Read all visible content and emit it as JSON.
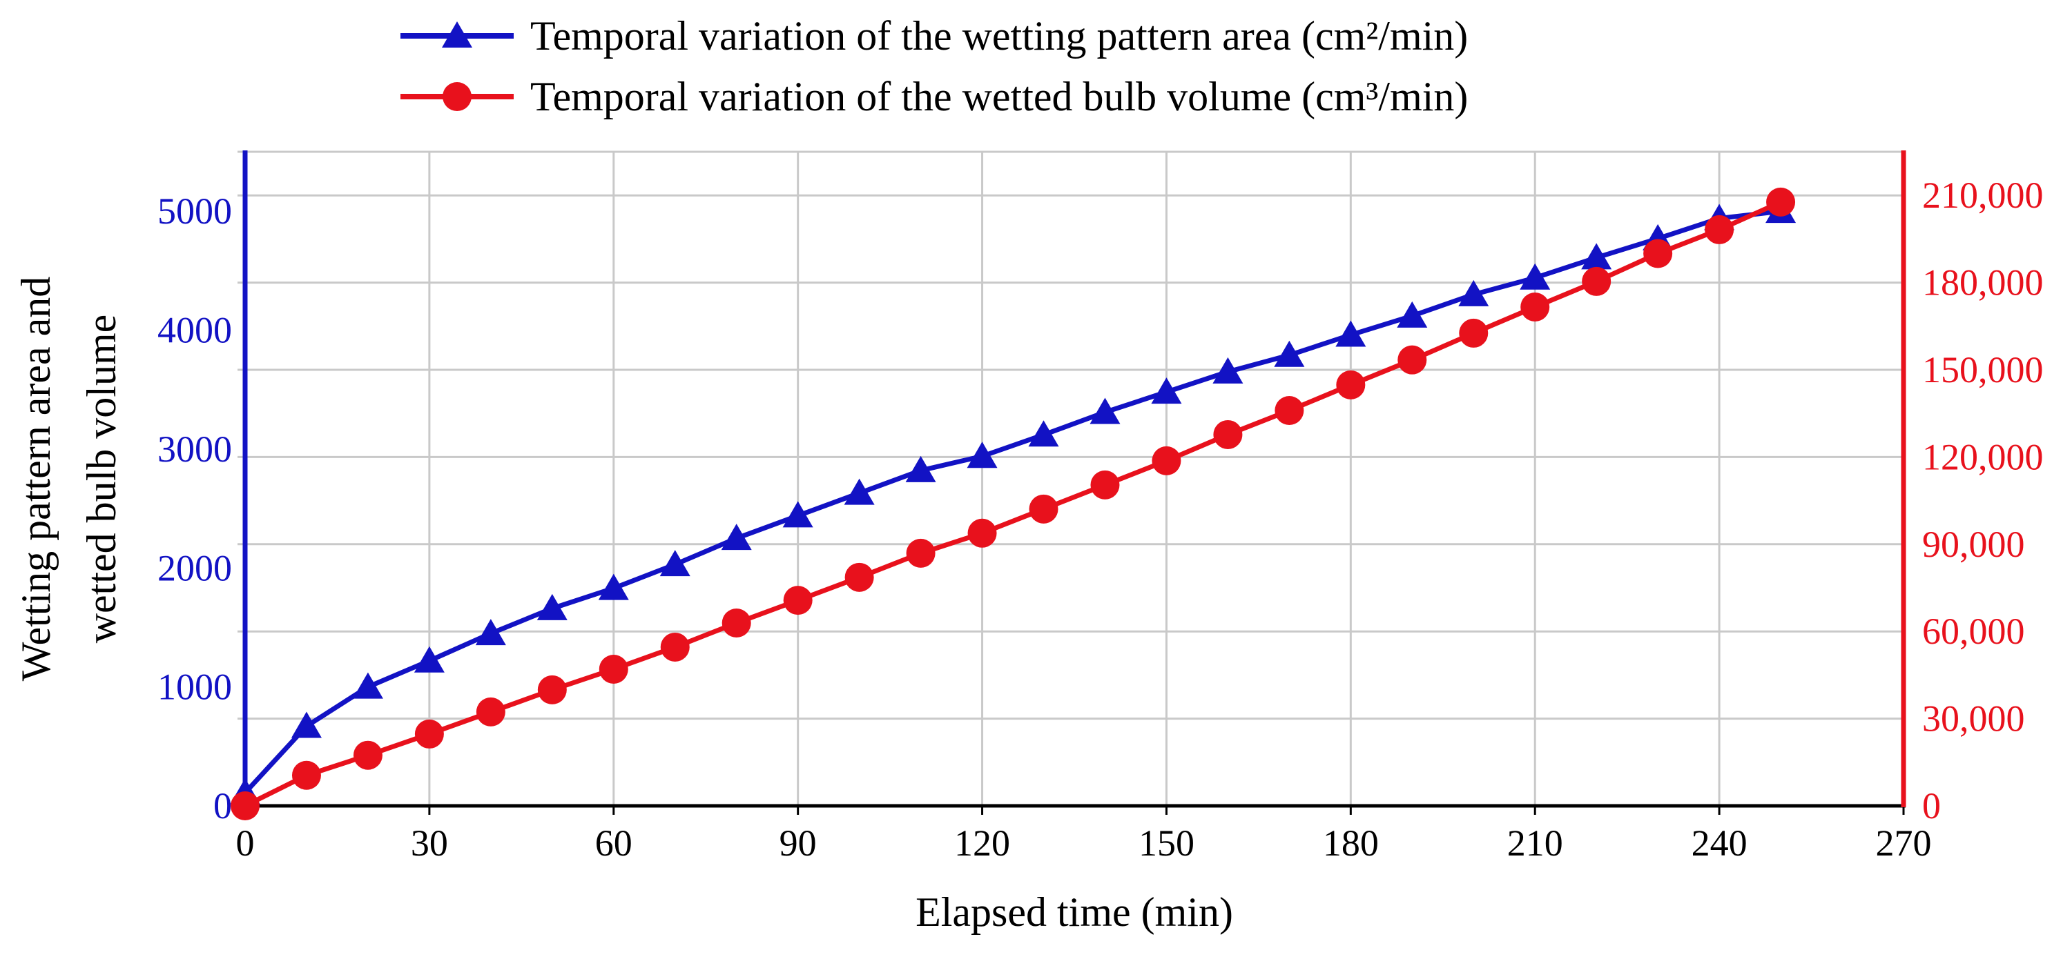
{
  "colors": {
    "series_area_blue": "#1212c4",
    "series_volume_red": "#e8111c",
    "gridline_gray": "#c9c9c9",
    "axis_black": "#000000",
    "background": "#ffffff"
  },
  "chart_data": {
    "type": "line",
    "x": [
      0,
      10,
      20,
      30,
      40,
      50,
      60,
      70,
      80,
      90,
      100,
      110,
      120,
      130,
      140,
      150,
      160,
      170,
      180,
      190,
      200,
      210,
      220,
      230,
      240,
      250
    ],
    "series": [
      {
        "name": "Temporal variation of the wetting pattern area (cm²/min)",
        "axis": "left",
        "marker": "triangle",
        "color": "#1212c4",
        "values": [
          110,
          670,
          1000,
          1220,
          1450,
          1660,
          1830,
          2030,
          2250,
          2440,
          2630,
          2820,
          2940,
          3120,
          3310,
          3480,
          3650,
          3790,
          3960,
          4120,
          4300,
          4440,
          4610,
          4770,
          4940,
          5000
        ]
      },
      {
        "name": "Temporal variation of the wetted bulb volume (cm³/min)",
        "axis": "right",
        "marker": "circle",
        "color": "#e8111c",
        "values": [
          0,
          10500,
          17400,
          24700,
          32300,
          39900,
          47000,
          54600,
          62900,
          70700,
          78600,
          86900,
          93800,
          102100,
          110400,
          118700,
          127700,
          136000,
          144800,
          153400,
          162600,
          171600,
          180400,
          190000,
          198200,
          207700
        ]
      }
    ],
    "xlabel": "Elapsed time (min)",
    "ylabel_left_lines": [
      "Wetting pattern area and",
      "wetted bulb volume"
    ],
    "x_range": [
      0,
      270
    ],
    "x_ticks": [
      0,
      30,
      60,
      90,
      120,
      150,
      180,
      210,
      240,
      270
    ],
    "x_tick_labels": [
      "0",
      "30",
      "60",
      "90",
      "120",
      "150",
      "180",
      "210",
      "240",
      "270"
    ],
    "left_axis": {
      "range": [
        0,
        5500
      ],
      "ticks": [
        0,
        1000,
        2000,
        3000,
        4000,
        5000
      ],
      "labels": [
        "0",
        "1000",
        "2000",
        "3000",
        "4000",
        "5000"
      ],
      "color": "#1212c4"
    },
    "right_axis": {
      "range": [
        0,
        225000
      ],
      "ticks": [
        0,
        30000,
        60000,
        90000,
        120000,
        150000,
        180000,
        210000
      ],
      "labels": [
        "0",
        "30,000",
        "60,000",
        "90,000",
        "120,000",
        "150,000",
        "180,000",
        "210,000"
      ],
      "color": "#e8111c"
    },
    "grid": {
      "on": true,
      "color": "#c9c9c9",
      "horizontal_step": 30000,
      "vertical_step": 30
    },
    "legend_position": "top"
  }
}
